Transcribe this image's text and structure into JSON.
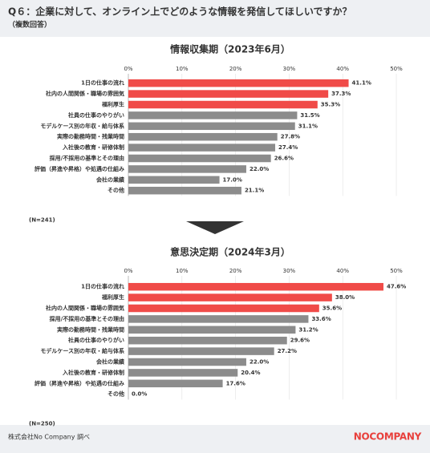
{
  "header": {
    "title": "Q６：企業に対して、オンライン上でどのような情報を発信してほしいですか？",
    "subtitle": "（複数回答）"
  },
  "chart_data": [
    {
      "type": "bar",
      "orientation": "horizontal",
      "title": "情報収集期（2023年6月）",
      "categories": [
        "1日の仕事の流れ",
        "社内の人間関係・職場の雰囲気",
        "福利厚生",
        "社員の仕事のやりがい",
        "モデルケース別の年収・給与体系",
        "実際の勤務時間・残業時間",
        "入社後の教育・研修体制",
        "採用/不採用の基準とその理由",
        "評価（昇進や昇格）や処遇の仕組み",
        "会社の業績",
        "その他"
      ],
      "values": [
        41.1,
        37.3,
        35.3,
        31.5,
        31.1,
        27.8,
        27.4,
        26.6,
        22.0,
        17.0,
        21.1
      ],
      "value_labels": [
        "41.1%",
        "37.3%",
        "35.3%",
        "31.5%",
        "31.1%",
        "27.8%",
        "27.4%",
        "26.6%",
        "22.0%",
        "17.0%",
        "21.1%"
      ],
      "colors": [
        "#f04b48",
        "#f04b48",
        "#f04b48",
        "#8c8c8c",
        "#8c8c8c",
        "#8c8c8c",
        "#8c8c8c",
        "#8c8c8c",
        "#8c8c8c",
        "#8c8c8c",
        "#8c8c8c"
      ],
      "xlim": [
        0,
        50
      ],
      "xticks": [
        {
          "value": 0,
          "label": "0%"
        },
        {
          "value": 10,
          "label": "10%"
        },
        {
          "value": 20,
          "label": "20%"
        },
        {
          "value": 30,
          "label": "30%"
        },
        {
          "value": 40,
          "label": "40%"
        },
        {
          "value": 50,
          "label": "50%"
        }
      ],
      "grid": true,
      "note": "(N=241)"
    },
    {
      "type": "bar",
      "orientation": "horizontal",
      "title": "意思決定期（2024年3月）",
      "categories": [
        "1日の仕事の流れ",
        "福利厚生",
        "社内の人間関係・職場の雰囲気",
        "採用/不採用の基準とその理由",
        "実際の勤務時間・残業時間",
        "社員の仕事のやりがい",
        "モデルケース別の年収・給与体系",
        "会社の業績",
        "入社後の教育・研修体制",
        "評価（昇進や昇格）や処遇の仕組み",
        "その他"
      ],
      "values": [
        47.6,
        38.0,
        35.6,
        33.6,
        31.2,
        29.6,
        27.2,
        22.0,
        20.4,
        17.6,
        0.0
      ],
      "value_labels": [
        "47.6%",
        "38.0%",
        "35.6%",
        "33.6%",
        "31.2%",
        "29.6%",
        "27.2%",
        "22.0%",
        "20.4%",
        "17.6%",
        "0.0%"
      ],
      "colors": [
        "#f04b48",
        "#f04b48",
        "#f04b48",
        "#8c8c8c",
        "#8c8c8c",
        "#8c8c8c",
        "#8c8c8c",
        "#8c8c8c",
        "#8c8c8c",
        "#8c8c8c",
        "#8c8c8c"
      ],
      "xlim": [
        0,
        50
      ],
      "xticks": [
        {
          "value": 0,
          "label": "0%"
        },
        {
          "value": 10,
          "label": "10%"
        },
        {
          "value": 20,
          "label": "20%"
        },
        {
          "value": 30,
          "label": "30%"
        },
        {
          "value": 40,
          "label": "40%"
        },
        {
          "value": 50,
          "label": "50%"
        }
      ],
      "grid": true,
      "note": "(N=250)"
    }
  ],
  "footer": {
    "source": "株式会社No Company 調べ",
    "logo": "NOCOMPANY"
  }
}
